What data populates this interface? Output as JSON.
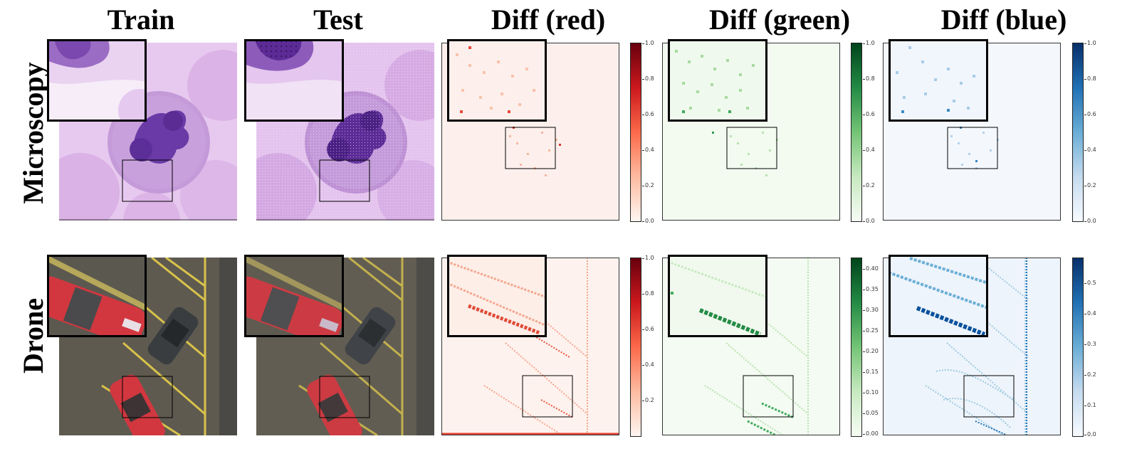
{
  "columns": [
    "Train",
    "Test",
    "Diff (red)",
    "Diff (green)",
    "Diff (blue)"
  ],
  "rows": [
    "Microscopy",
    "Drone"
  ],
  "colorbars": {
    "micro_red": [
      "1.0",
      "0.8",
      "0.6",
      "0.4",
      "0.2",
      "0.0"
    ],
    "micro_green": [
      "1.0",
      "0.8",
      "0.6",
      "0.4",
      "0.2",
      "0.0"
    ],
    "micro_blue": [
      "1.0",
      "0.8",
      "0.6",
      "0.4",
      "0.2",
      "0.0"
    ],
    "drone_red": [
      "1.0",
      "0.8",
      "0.6",
      "0.4",
      "0.2"
    ],
    "drone_green": [
      "0.40",
      "0.35",
      "0.30",
      "0.25",
      "0.20",
      "0.15",
      "0.10",
      "0.05",
      "0.00"
    ],
    "drone_blue": [
      "0.5",
      "0.4",
      "0.3",
      "0.2",
      "0.1",
      "0.0"
    ]
  },
  "colors": {
    "red_max": "#67000d",
    "green_max": "#00441b",
    "blue_max": "#08306b",
    "cell_purple": "#6a3aa6",
    "car_red": "#d2373f",
    "road_line": "#d8c24a"
  },
  "icons": [
    "zoom-inset",
    "zoom-region-box"
  ]
}
